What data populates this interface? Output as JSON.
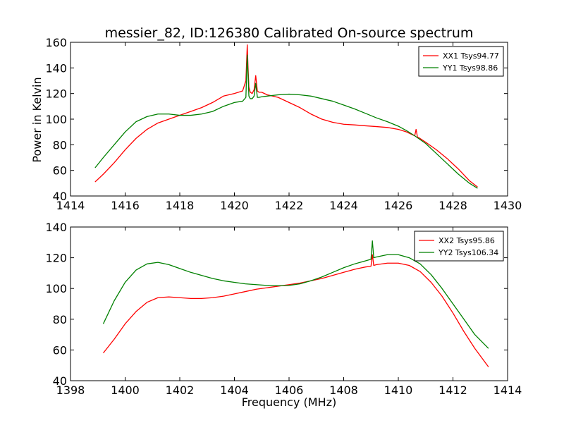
{
  "figure": {
    "title": "messier_82, ID:126380 Calibrated On-source spectrum",
    "xlabel": "Frequency (MHz)",
    "ylabel": "Power in Kelvin"
  },
  "chart_data": [
    {
      "type": "line",
      "title": "messier_82, ID:126380 Calibrated On-source spectrum",
      "xlabel": "",
      "ylabel": "Power in Kelvin",
      "xlim": [
        1414,
        1430
      ],
      "ylim": [
        40,
        160
      ],
      "xticks": [
        1414,
        1416,
        1418,
        1420,
        1422,
        1424,
        1426,
        1428,
        1430
      ],
      "yticks": [
        40,
        60,
        80,
        100,
        120,
        140,
        160
      ],
      "grid": false,
      "legend_position": "top-right",
      "series": [
        {
          "name": "XX1 Tsys94.77",
          "color": "#ff0000",
          "x": [
            1414.9,
            1415.2,
            1415.6,
            1416.0,
            1416.4,
            1416.8,
            1417.2,
            1417.6,
            1418.0,
            1418.4,
            1418.8,
            1419.2,
            1419.6,
            1420.0,
            1420.3,
            1420.42,
            1420.47,
            1420.5,
            1420.53,
            1420.58,
            1420.65,
            1420.72,
            1420.78,
            1420.84,
            1420.9,
            1421.0,
            1421.2,
            1421.6,
            1422.0,
            1422.4,
            1422.8,
            1423.2,
            1423.6,
            1424.0,
            1424.4,
            1424.8,
            1425.2,
            1425.6,
            1426.0,
            1426.3,
            1426.6,
            1426.65,
            1426.7,
            1426.75,
            1427.0,
            1427.4,
            1427.8,
            1428.2,
            1428.6,
            1428.9
          ],
          "y": [
            51,
            57,
            66,
            76,
            85,
            92,
            97,
            100,
            103,
            106,
            109,
            113,
            118,
            120,
            122,
            130,
            158,
            140,
            125,
            121,
            120,
            123,
            134,
            122,
            121,
            121,
            119,
            117,
            113,
            109,
            104,
            100,
            97.5,
            96,
            95.5,
            94.8,
            94.2,
            93.5,
            92,
            90,
            87,
            92,
            86,
            85.5,
            82,
            76,
            69,
            61,
            52,
            47
          ]
        },
        {
          "name": "YY1 Tsys98.86",
          "color": "#008000",
          "x": [
            1414.9,
            1415.2,
            1415.6,
            1416.0,
            1416.4,
            1416.8,
            1417.2,
            1417.6,
            1418.0,
            1418.4,
            1418.8,
            1419.2,
            1419.6,
            1420.0,
            1420.3,
            1420.42,
            1420.47,
            1420.5,
            1420.53,
            1420.58,
            1420.65,
            1420.72,
            1420.78,
            1420.84,
            1420.9,
            1421.0,
            1421.2,
            1421.6,
            1422.0,
            1422.4,
            1422.8,
            1423.2,
            1423.6,
            1424.0,
            1424.4,
            1424.8,
            1425.2,
            1425.6,
            1426.0,
            1426.3,
            1426.6,
            1427.0,
            1427.4,
            1427.8,
            1428.2,
            1428.6,
            1428.9
          ],
          "y": [
            62,
            70,
            80,
            90,
            98,
            102,
            104,
            104,
            103,
            103,
            104,
            106,
            110,
            113,
            114,
            117,
            150,
            135,
            118,
            116,
            116,
            118,
            128,
            117,
            117,
            117.5,
            118,
            119,
            119.5,
            119,
            118,
            116,
            114,
            111,
            108,
            104.5,
            101,
            98,
            94.5,
            91,
            87,
            81,
            73,
            65,
            57,
            50,
            46
          ]
        }
      ]
    },
    {
      "type": "line",
      "title": "",
      "xlabel": "Frequency (MHz)",
      "ylabel": "",
      "xlim": [
        1398,
        1414
      ],
      "ylim": [
        40,
        140
      ],
      "xticks": [
        1398,
        1400,
        1402,
        1404,
        1406,
        1408,
        1410,
        1412,
        1414
      ],
      "yticks": [
        40,
        60,
        80,
        100,
        120,
        140
      ],
      "grid": false,
      "legend_position": "top-right",
      "series": [
        {
          "name": "XX2 Tsys95.86",
          "color": "#ff0000",
          "x": [
            1399.2,
            1399.6,
            1400.0,
            1400.4,
            1400.8,
            1401.2,
            1401.6,
            1402.0,
            1402.4,
            1402.8,
            1403.2,
            1403.6,
            1404.0,
            1404.4,
            1404.8,
            1405.2,
            1405.6,
            1406.0,
            1406.4,
            1406.8,
            1407.2,
            1407.6,
            1408.0,
            1408.4,
            1408.8,
            1409.0,
            1409.05,
            1409.1,
            1409.2,
            1409.6,
            1410.0,
            1410.4,
            1410.8,
            1411.2,
            1411.6,
            1412.0,
            1412.4,
            1412.8,
            1413.3
          ],
          "y": [
            58,
            67,
            77,
            85,
            91,
            94,
            94.5,
            94,
            93.5,
            93.5,
            94,
            95,
            96.5,
            98,
            99.5,
            100.5,
            101.5,
            102.5,
            103.5,
            105,
            106.5,
            108.5,
            110.5,
            112.5,
            114,
            114.5,
            122,
            115,
            115.5,
            116.5,
            116.5,
            115,
            111,
            104,
            95,
            84,
            72,
            61,
            49
          ]
        },
        {
          "name": "YY2 Tsys106.34",
          "color": "#008000",
          "x": [
            1399.2,
            1399.6,
            1400.0,
            1400.4,
            1400.8,
            1401.2,
            1401.6,
            1402.0,
            1402.4,
            1402.8,
            1403.2,
            1403.6,
            1404.0,
            1404.4,
            1404.8,
            1405.2,
            1405.6,
            1406.0,
            1406.4,
            1406.8,
            1407.2,
            1407.6,
            1408.0,
            1408.4,
            1408.8,
            1409.0,
            1409.05,
            1409.1,
            1409.2,
            1409.6,
            1410.0,
            1410.4,
            1410.8,
            1411.2,
            1411.6,
            1412.0,
            1412.4,
            1412.8,
            1413.3
          ],
          "y": [
            77,
            92,
            104,
            112,
            116,
            117,
            115.5,
            113,
            110.5,
            108.5,
            106.5,
            105,
            104,
            103,
            102.5,
            102,
            101.8,
            102,
            103,
            105,
            107.5,
            110.5,
            113.5,
            116,
            118,
            119,
            131,
            120,
            120.5,
            122,
            122,
            120,
            116,
            109,
            100,
            90,
            80,
            70,
            61
          ]
        }
      ]
    }
  ]
}
